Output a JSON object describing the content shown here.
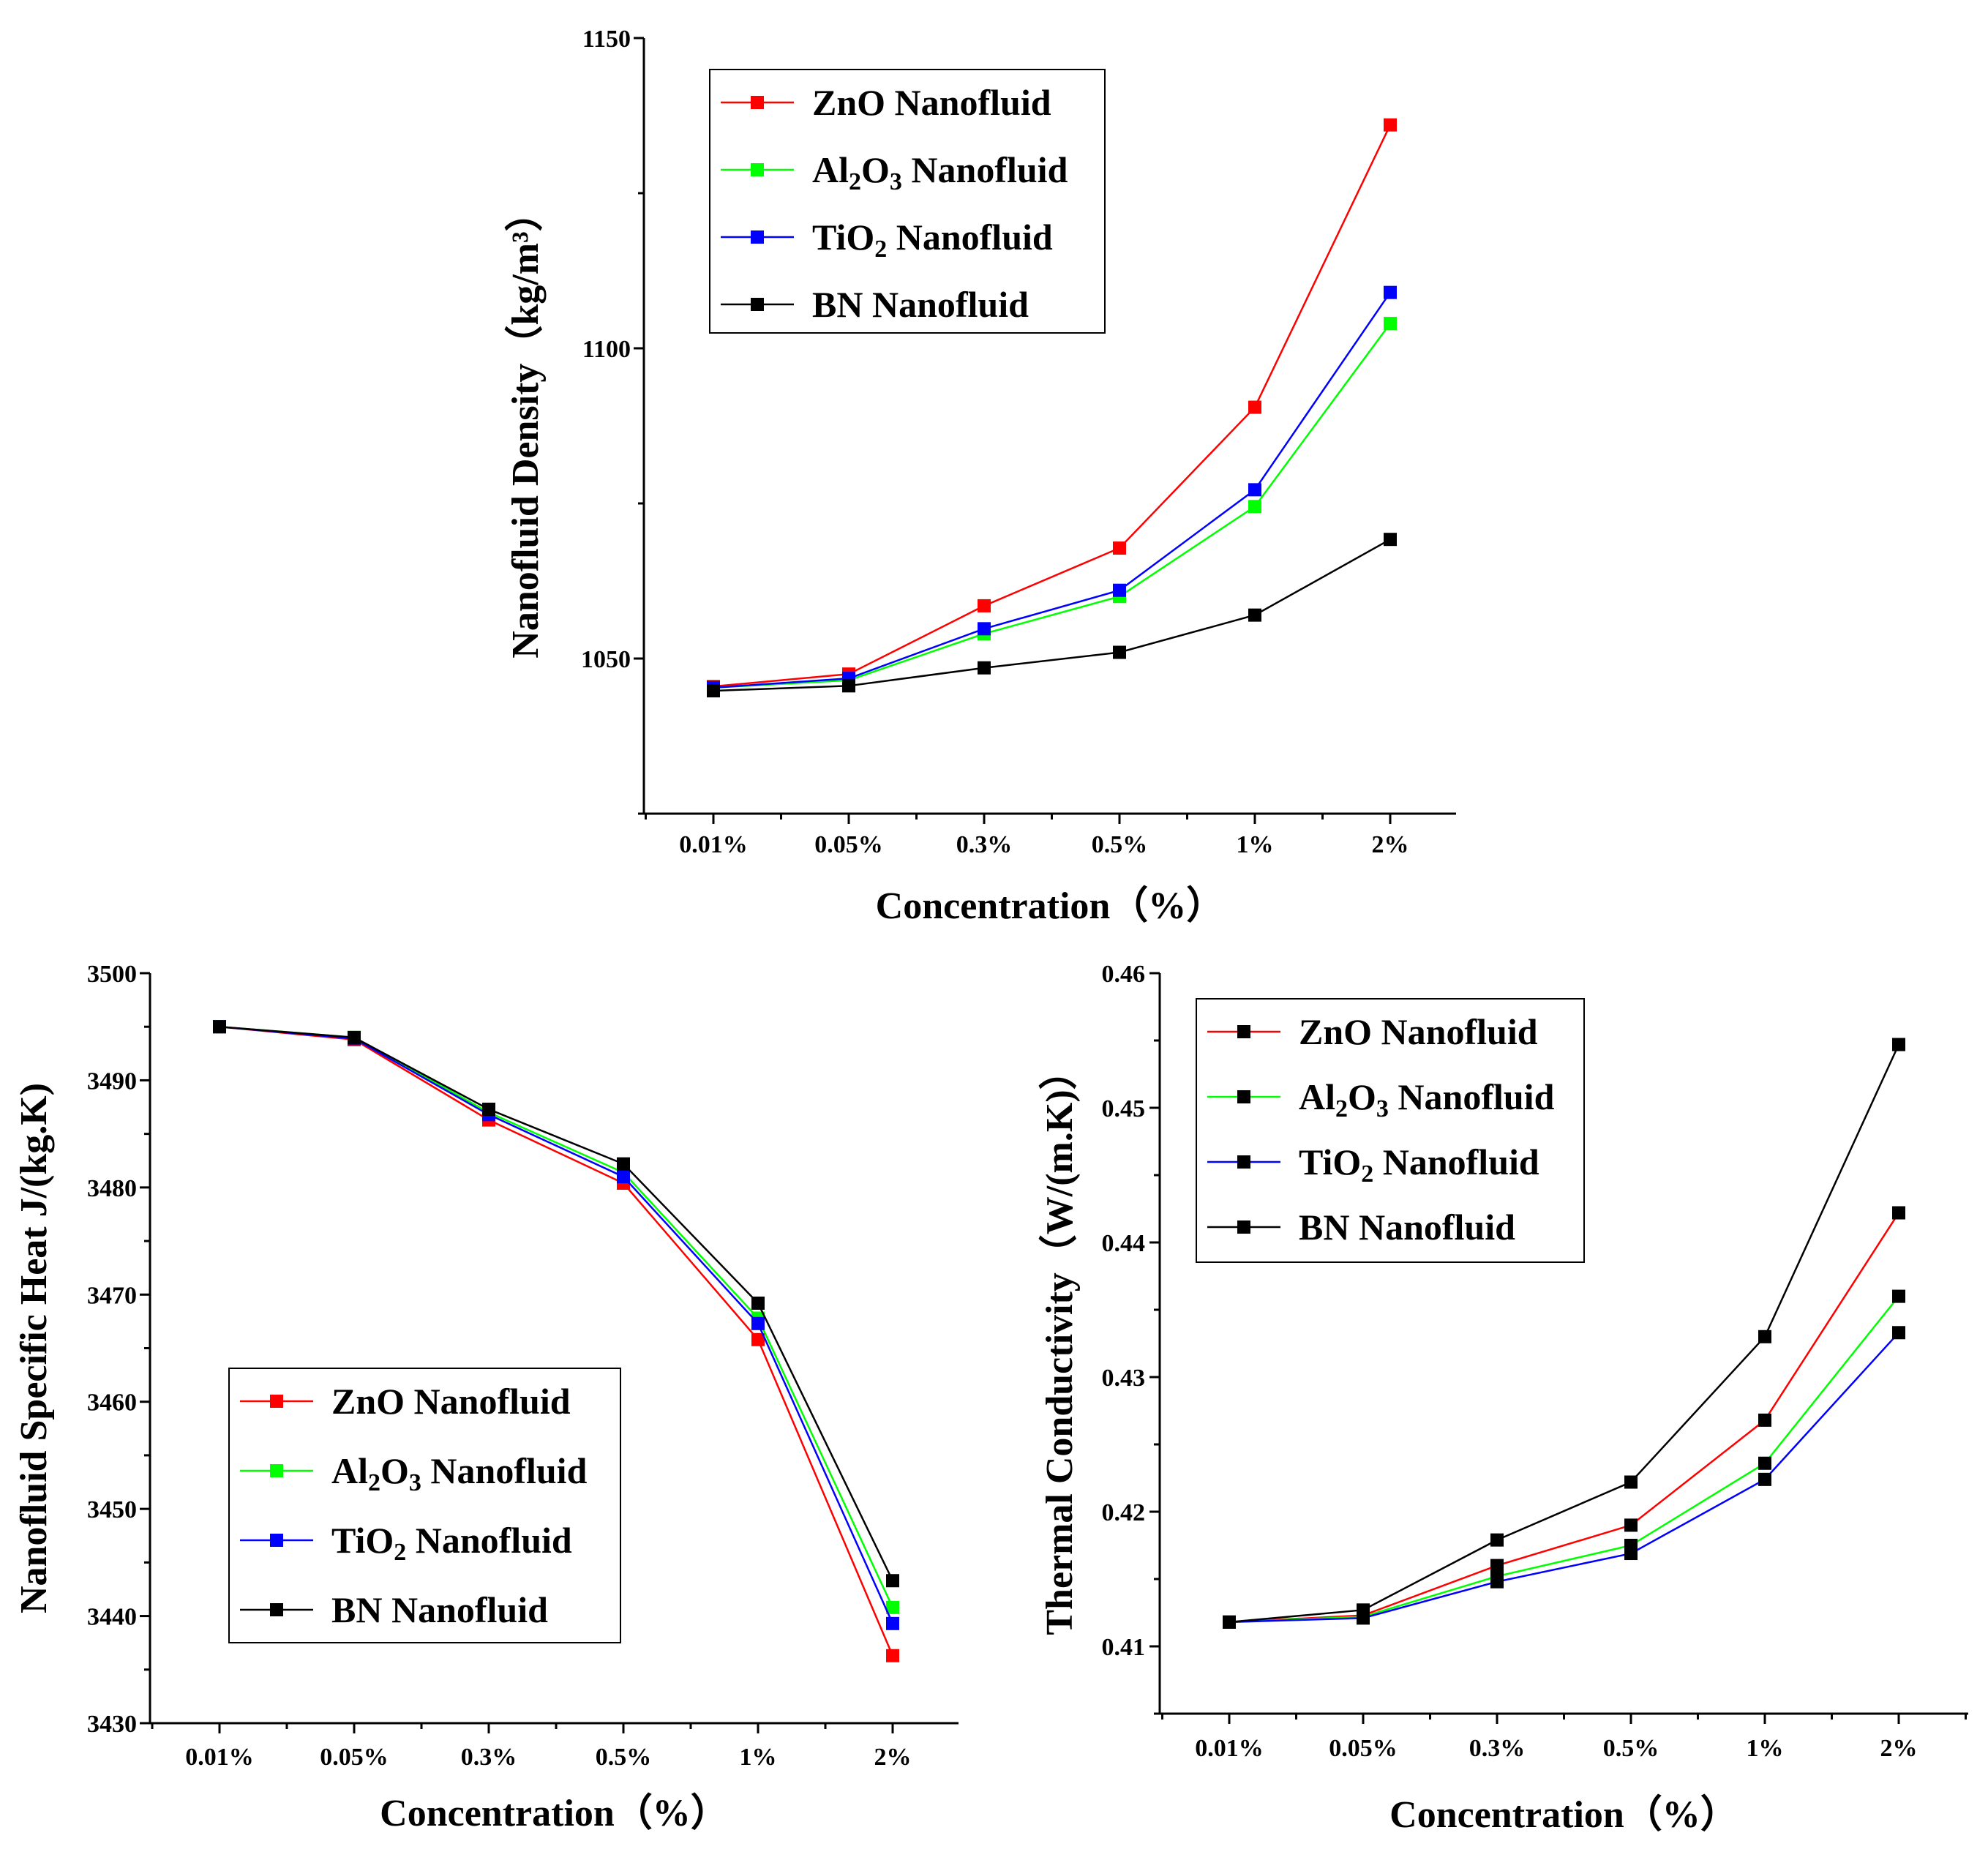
{
  "colors": {
    "zno": "#ff0000",
    "al2o3": "#00ff00",
    "tio2": "#0000ff",
    "bn": "#000000"
  },
  "chart_data": [
    {
      "type": "line",
      "title": "",
      "xlabel": "Concentration（%）",
      "ylabel": "Nanofluid Density（kg/m³）",
      "categories": [
        "0.01%",
        "0.05%",
        "0.3%",
        "0.5%",
        "1%",
        "2%"
      ],
      "ylim": [
        1025,
        1150
      ],
      "yticks": [
        "1050",
        "1100",
        "1150"
      ],
      "ytick_values": [
        1050,
        1100,
        1150
      ],
      "legend_position": "top-left",
      "series": [
        {
          "name": "ZnO Nanofluid",
          "label_main": "ZnO Nanofluid",
          "color_key": "zno",
          "marker_color_key": "zno",
          "values": [
            1045.5,
            1047.5,
            1058.5,
            1067.8,
            1090.5,
            1136.0
          ]
        },
        {
          "name": "Al2O3 Nanofluid",
          "label_parts": [
            "Al",
            "2",
            "O",
            "3",
            " Nanofluid"
          ],
          "color_key": "al2o3",
          "marker_color_key": "al2o3",
          "values": [
            1045.3,
            1046.5,
            1054.0,
            1060.0,
            1074.5,
            1104.0
          ]
        },
        {
          "name": "TiO2 Nanofluid",
          "label_parts": [
            "TiO",
            "2",
            " Nanofluid"
          ],
          "color_key": "tio2",
          "marker_color_key": "tio2",
          "values": [
            1045.3,
            1046.8,
            1054.8,
            1061.0,
            1077.2,
            1109.0
          ]
        },
        {
          "name": "BN Nanofluid",
          "label_main": "BN Nanofluid",
          "color_key": "bn",
          "marker_color_key": "bn",
          "values": [
            1044.8,
            1045.6,
            1048.5,
            1051.0,
            1057.0,
            1069.2
          ]
        }
      ]
    },
    {
      "type": "line",
      "title": "",
      "xlabel": "Concentration（%）",
      "ylabel": "Nanofluid Specific Heat J/(kg.K)",
      "categories": [
        "0.01%",
        "0.05%",
        "0.3%",
        "0.5%",
        "1%",
        "2%"
      ],
      "ylim": [
        3430,
        3500
      ],
      "yticks": [
        "3430",
        "3440",
        "3450",
        "3460",
        "3470",
        "3480",
        "3490",
        "3500"
      ],
      "ytick_values": [
        3430,
        3440,
        3450,
        3460,
        3470,
        3480,
        3490,
        3500
      ],
      "legend_position": "bottom-left",
      "series": [
        {
          "name": "ZnO Nanofluid",
          "label_main": "ZnO Nanofluid",
          "color_key": "zno",
          "marker_color_key": "zno",
          "values": [
            3495.0,
            3493.8,
            3486.3,
            3480.4,
            3465.8,
            3436.3
          ]
        },
        {
          "name": "Al2O3 Nanofluid",
          "label_parts": [
            "Al",
            "2",
            "O",
            "3",
            " Nanofluid"
          ],
          "color_key": "al2o3",
          "marker_color_key": "al2o3",
          "values": [
            3495.0,
            3494.0,
            3487.0,
            3481.4,
            3467.8,
            3440.8
          ]
        },
        {
          "name": "TiO2 Nanofluid",
          "label_parts": [
            "TiO",
            "2",
            " Nanofluid"
          ],
          "color_key": "tio2",
          "marker_color_key": "tio2",
          "values": [
            3495.0,
            3493.9,
            3486.8,
            3481.0,
            3467.3,
            3439.3
          ]
        },
        {
          "name": "BN Nanofluid",
          "label_main": "BN Nanofluid",
          "color_key": "bn",
          "marker_color_key": "bn",
          "values": [
            3495.0,
            3494.0,
            3487.3,
            3482.2,
            3469.2,
            3443.3
          ]
        }
      ]
    },
    {
      "type": "line",
      "title": "",
      "xlabel": "Concentration（%）",
      "ylabel": "Thermal Conductivity（W/(m.K)）",
      "categories": [
        "0.01%",
        "0.05%",
        "0.3%",
        "0.5%",
        "1%",
        "2%"
      ],
      "ylim": [
        0.405,
        0.46
      ],
      "yticks": [
        "0.41",
        "0.42",
        "0.43",
        "0.44",
        "0.45",
        "0.46"
      ],
      "ytick_values": [
        0.41,
        0.42,
        0.43,
        0.44,
        0.45,
        0.46
      ],
      "legend_position": "top-left",
      "series": [
        {
          "name": "ZnO Nanofluid",
          "label_main": "ZnO Nanofluid",
          "color_key": "zno",
          "marker_color_key": "bn",
          "values": [
            0.4118,
            0.4123,
            0.416,
            0.419,
            0.4268,
            0.4422
          ]
        },
        {
          "name": "Al2O3 Nanofluid",
          "label_parts": [
            "Al",
            "2",
            "O",
            "3",
            " Nanofluid"
          ],
          "color_key": "al2o3",
          "marker_color_key": "bn",
          "values": [
            0.4118,
            0.4122,
            0.4152,
            0.4175,
            0.4236,
            0.436
          ]
        },
        {
          "name": "TiO2 Nanofluid",
          "label_parts": [
            "TiO",
            "2",
            " Nanofluid"
          ],
          "color_key": "tio2",
          "marker_color_key": "bn",
          "values": [
            0.4118,
            0.4121,
            0.4148,
            0.4169,
            0.4224,
            0.4333
          ]
        },
        {
          "name": "BN Nanofluid",
          "label_main": "BN Nanofluid",
          "color_key": "bn",
          "marker_color_key": "bn",
          "values": [
            0.4118,
            0.4127,
            0.4179,
            0.4222,
            0.433,
            0.4547
          ]
        }
      ]
    }
  ]
}
